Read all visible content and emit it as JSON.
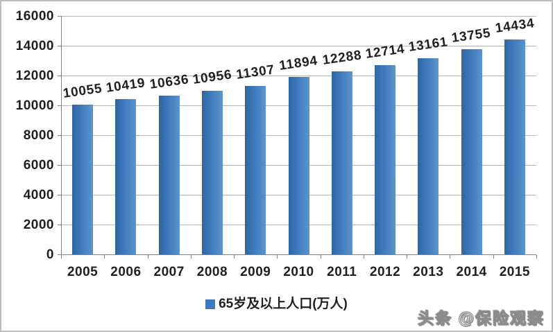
{
  "chart_data": {
    "type": "bar",
    "categories": [
      "2005",
      "2006",
      "2007",
      "2008",
      "2009",
      "2010",
      "2011",
      "2012",
      "2013",
      "2014",
      "2015"
    ],
    "values": [
      10055,
      10419,
      10636,
      10956,
      11307,
      11894,
      12288,
      12714,
      13161,
      13755,
      14434
    ],
    "series": [
      {
        "name": "65岁及以上人口(万人)",
        "values": [
          10055,
          10419,
          10636,
          10956,
          11307,
          11894,
          12288,
          12714,
          13161,
          13755,
          14434
        ]
      }
    ],
    "title": "",
    "xlabel": "",
    "ylabel": "",
    "ylim": [
      0,
      16000
    ],
    "yticks": [
      0,
      2000,
      4000,
      6000,
      8000,
      10000,
      12000,
      14000,
      16000
    ],
    "grid": true,
    "data_labels": true,
    "legend_position": "bottom",
    "bar_color": "#3d7abd",
    "gridline_color": "#b3b3b3",
    "axis_color": "#7f7f7f",
    "label_color": "#1f1f1f"
  },
  "legend": {
    "label": "65岁及以上人口(万人)",
    "marker_color": "#3d7abd"
  },
  "watermark": {
    "text": "头条 @保险观察"
  }
}
